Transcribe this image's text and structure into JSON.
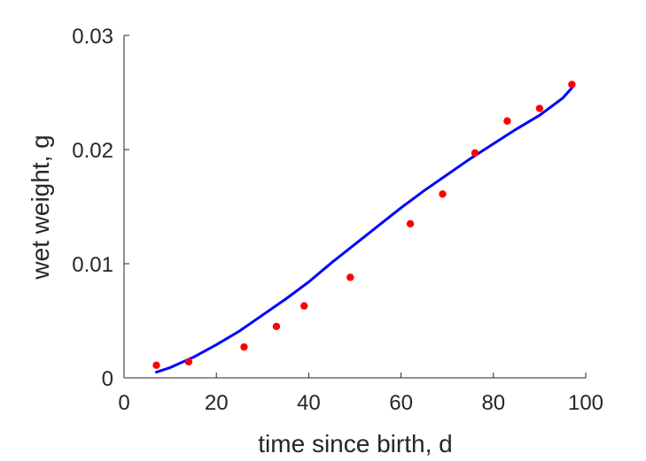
{
  "chart_data": {
    "type": "scatter",
    "title": "",
    "xlabel": "time since birth, d",
    "ylabel": "wet weight, g",
    "xlim": [
      0,
      100
    ],
    "ylim": [
      0,
      0.03
    ],
    "xticks": [
      0,
      20,
      40,
      60,
      80,
      100
    ],
    "xtick_labels": [
      "0",
      "20",
      "40",
      "60",
      "80",
      "100"
    ],
    "yticks": [
      0,
      0.01,
      0.02,
      0.03
    ],
    "ytick_labels": [
      "0",
      "0.01",
      "0.02",
      "0.03"
    ],
    "grid": false,
    "legend": "none",
    "series": [
      {
        "kind": "scatter",
        "color": "#ff0000",
        "x": [
          7,
          14,
          26,
          33,
          39,
          49,
          62,
          69,
          76,
          83,
          90,
          97
        ],
        "y": [
          0.0011,
          0.0014,
          0.0027,
          0.0045,
          0.0063,
          0.0088,
          0.0135,
          0.0161,
          0.0197,
          0.0225,
          0.0236,
          0.0257
        ]
      },
      {
        "kind": "line",
        "color": "#0000ff",
        "x": [
          7,
          10,
          15,
          20,
          25,
          30,
          35,
          40,
          45,
          50,
          55,
          60,
          65,
          70,
          75,
          80,
          85,
          90,
          95,
          97
        ],
        "y": [
          0.0005,
          0.0009,
          0.0018,
          0.0029,
          0.0041,
          0.0055,
          0.0069,
          0.0084,
          0.0101,
          0.0117,
          0.0133,
          0.0149,
          0.0164,
          0.0178,
          0.0192,
          0.0205,
          0.0218,
          0.023,
          0.0245,
          0.0254
        ]
      }
    ]
  }
}
